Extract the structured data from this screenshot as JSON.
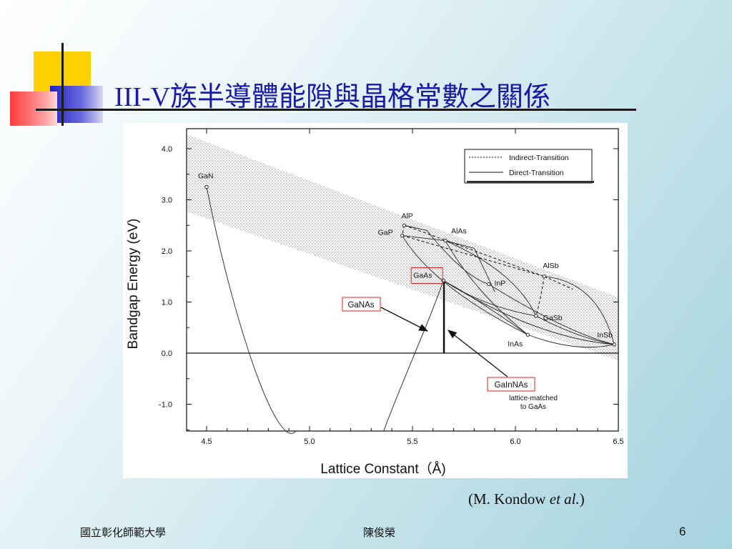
{
  "slide": {
    "title": "III-V族半導體能隙與晶格常數之關係",
    "citation_prefix": "(M. Kondow ",
    "citation_italic": "et al.",
    "citation_suffix": ")",
    "footer_left": "國立彰化師範大學",
    "footer_center": "陳俊榮",
    "page_number": "6",
    "colors": {
      "title": "#1a1aa6",
      "deco_yellow": "#ffd000",
      "deco_blue": "#2222c8",
      "deco_red": "#ff4040",
      "callout_box": "#e02020"
    }
  },
  "chart_data": {
    "type": "scatter",
    "xlabel": "Lattice Constant（Å)",
    "ylabel": "Bandgap Energy  (eV)",
    "xlim": [
      4.5,
      6.5
    ],
    "ylim": [
      -1.5,
      4.3
    ],
    "x_ticks": [
      "4.5",
      "5.0",
      "5.5",
      "6.0",
      "6.5"
    ],
    "y_ticks": [
      "4.0",
      "3.0",
      "2.0",
      "1.0",
      "0.0",
      "-1.0"
    ],
    "grid": false,
    "legend_position": "top-right",
    "legend": [
      {
        "label": "Indirect-Transition",
        "style": "dashed"
      },
      {
        "label": "Direct-Transition",
        "style": "solid"
      }
    ],
    "points": [
      {
        "name": "GaN",
        "x": 4.5,
        "y": 3.25
      },
      {
        "name": "AlP",
        "x": 5.46,
        "y": 2.5
      },
      {
        "name": "GaP",
        "x": 5.45,
        "y": 2.3
      },
      {
        "name": "AlAs",
        "x": 5.66,
        "y": 2.2
      },
      {
        "name": "GaAs",
        "x": 5.65,
        "y": 1.42
      },
      {
        "name": "InP",
        "x": 5.87,
        "y": 1.35
      },
      {
        "name": "AlSb",
        "x": 6.14,
        "y": 1.5
      },
      {
        "name": "GaSb",
        "x": 6.1,
        "y": 0.73
      },
      {
        "name": "InAs",
        "x": 6.06,
        "y": 0.36
      },
      {
        "name": "InSb",
        "x": 6.48,
        "y": 0.17
      }
    ],
    "callouts": [
      {
        "label": "GaNAs",
        "boxed": true
      },
      {
        "label": "GaInNAs",
        "boxed": true,
        "sublabel_1": "lattice-matched",
        "sublabel_2": "to GaAs"
      }
    ],
    "lattice_matched_line": {
      "x": 5.653,
      "y_range": [
        0.0,
        1.42
      ]
    }
  }
}
